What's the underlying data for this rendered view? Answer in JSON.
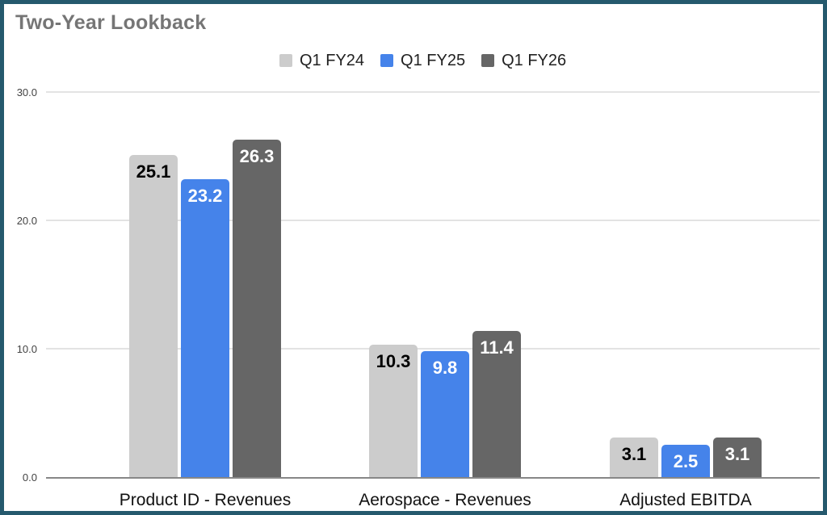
{
  "window": {
    "border_color": "#25596d",
    "background_color": "#ffffff"
  },
  "chart_data": {
    "type": "bar",
    "title": "Two-Year Lookback",
    "title_color": "#757575",
    "categories": [
      "Product ID - Revenues",
      "Aerospace - Revenues",
      "Adjusted EBITDA"
    ],
    "series": [
      {
        "name": "Q1 FY24",
        "color": "#cccccc",
        "label_color": "#000000",
        "values": [
          25.1,
          10.3,
          3.1
        ]
      },
      {
        "name": "Q1 FY25",
        "color": "#4583ea",
        "label_color": "#ffffff",
        "values": [
          23.2,
          9.8,
          2.5
        ]
      },
      {
        "name": "Q1 FY26",
        "color": "#666666",
        "label_color": "#ffffff",
        "values": [
          26.3,
          11.4,
          3.1
        ]
      }
    ],
    "y_axis": {
      "min": 0,
      "max": 30,
      "tick_interval": 10,
      "tick_labels": [
        "0.0",
        "10.0",
        "20.0",
        "30.0"
      ],
      "tick_values": [
        0,
        10,
        20,
        30
      ]
    },
    "grid": true,
    "gridline_color": "#e3e3e3",
    "baseline_color": "#878787",
    "legend_position": "top",
    "data_labels": true
  }
}
